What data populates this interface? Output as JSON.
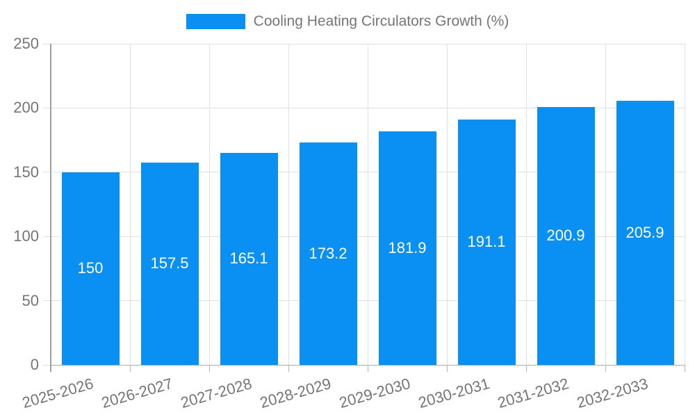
{
  "chart_data": {
    "type": "bar",
    "title": "Cooling Heating Circulators Growth (%)",
    "categories": [
      "2025-2026",
      "2026-2027",
      "2027-2028",
      "2028-2029",
      "2029-2030",
      "2030-2031",
      "2031-2032",
      "2032-2033"
    ],
    "series": [
      {
        "name": "Cooling Heating Circulators Growth (%)",
        "values": [
          150,
          157.5,
          165.1,
          173.2,
          181.9,
          191.1,
          200.9,
          205.9
        ]
      }
    ],
    "value_labels": [
      "150",
      "157.5",
      "165.1",
      "173.2",
      "181.9",
      "191.1",
      "200.9",
      "205.9"
    ],
    "xlabel": "",
    "ylabel": "",
    "ylim": [
      0,
      250
    ],
    "yticks": [
      0,
      50,
      100,
      150,
      200,
      250
    ],
    "grid": true,
    "legend_position": "top-center",
    "bar_color": "#0a90f2",
    "bar_label_color": "#ffffff",
    "axis_text_color": "#757575",
    "grid_color": "#e0e0e0",
    "zero_line_color": "#ababab",
    "tick_color": "#b3b3b3",
    "axis_line_color": "#9e9e9e"
  },
  "legend": {
    "items": [
      {
        "label": "Cooling Heating Circulators Growth (%)",
        "color": "#0a90f2"
      }
    ]
  }
}
